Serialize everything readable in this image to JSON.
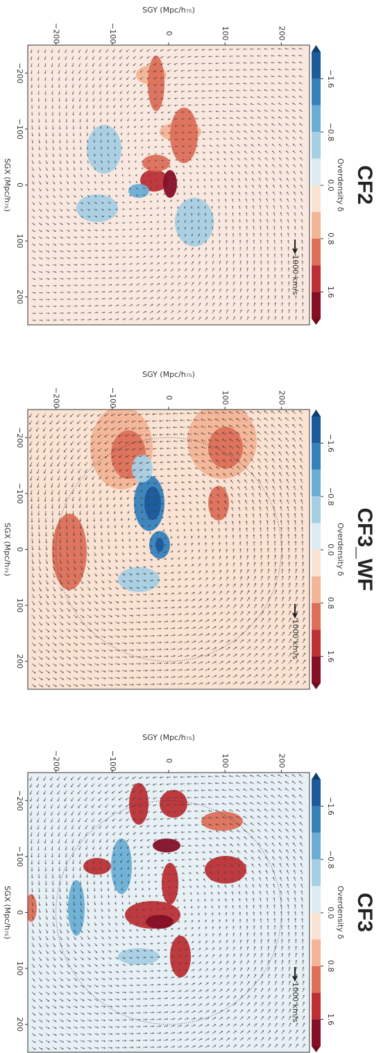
{
  "chart_data": [
    {
      "type": "contour",
      "title": "CF2",
      "xlabel": "SGX (Mpc/h₇₅)",
      "ylabel": "SGY (Mpc/h₇₅)",
      "xlim": [
        -250,
        250
      ],
      "xticks": [
        {
          "value": -200,
          "label": "−200"
        },
        {
          "value": -100,
          "label": "−100"
        },
        0,
        100,
        200
      ],
      "ylim": [
        -250,
        250
      ],
      "yticks": [
        {
          "value": -200,
          "label": "−200"
        },
        {
          "value": -100,
          "label": "−100"
        },
        0,
        100,
        200
      ],
      "colorbar": {
        "label": "Overdensity δ",
        "lim": [
          -2.0,
          2.0
        ],
        "levels": [
          -2.0,
          -1.6,
          -1.2,
          -0.8,
          -0.4,
          0.0,
          0.4,
          0.8,
          1.2,
          1.6,
          2.0
        ],
        "colors": [
          "#1b5a9b",
          "#3581ba",
          "#6aaed5",
          "#a7cfe4",
          "#ddebf2",
          "#fbe3d4",
          "#f4b496",
          "#dd6f58",
          "#bd2f35",
          "#860e25"
        ],
        "extend_colors": [
          "#0f3e73",
          "#6d0c1f"
        ],
        "ticks": [
          {
            "value": -1.6,
            "label": "−1.6"
          },
          {
            "value": -0.8,
            "label": "−0.8"
          },
          {
            "value": 0.0,
            "label": "0.0"
          },
          0.8,
          1.6
        ]
      },
      "quiver_key": "1000 km/s",
      "background": "#f9e8df"
    },
    {
      "type": "contour",
      "title": "CF3_WF",
      "xlabel": "SGX (Mpc/h₇₅)",
      "ylabel": "SGY (Mpc/h₇₅)",
      "xlim": [
        -250,
        250
      ],
      "xticks": [
        {
          "value": -200,
          "label": "−200"
        },
        {
          "value": -100,
          "label": "−100"
        },
        0,
        100,
        200
      ],
      "ylim": [
        -250,
        250
      ],
      "yticks": [
        {
          "value": -200,
          "label": "−200"
        },
        {
          "value": -100,
          "label": "−100"
        },
        0,
        100,
        200
      ],
      "colorbar": {
        "label": "Overdensity δ",
        "lim": [
          -2.0,
          2.0
        ],
        "levels": [
          -2.0,
          -1.6,
          -1.2,
          -0.8,
          -0.4,
          0.0,
          0.4,
          0.8,
          1.2,
          1.6,
          2.0
        ],
        "colors": [
          "#1b5a9b",
          "#3581ba",
          "#6aaed5",
          "#a7cfe4",
          "#ddebf2",
          "#fbe3d4",
          "#f4b496",
          "#dd6f58",
          "#bd2f35",
          "#860e25"
        ],
        "extend_colors": [
          "#0f3e73",
          "#6d0c1f"
        ],
        "ticks": [
          {
            "value": -1.6,
            "label": "−1.6"
          },
          {
            "value": -0.8,
            "label": "−0.8"
          },
          {
            "value": 0.0,
            "label": "0.0"
          },
          0.8,
          1.6
        ]
      },
      "quiver_key": "1000 km/s",
      "circle_radius": 200,
      "background": "#fbe3d4"
    },
    {
      "type": "contour",
      "title": "CF3",
      "xlabel": "SGX (Mpc/h₇₅)",
      "ylabel": "SGY (Mpc/h₇₅)",
      "xlim": [
        -250,
        250
      ],
      "xticks": [
        {
          "value": -200,
          "label": "−200"
        },
        {
          "value": -100,
          "label": "−100"
        },
        0,
        100,
        200
      ],
      "ylim": [
        -250,
        250
      ],
      "yticks": [
        {
          "value": -200,
          "label": "−200"
        },
        {
          "value": -100,
          "label": "−100"
        },
        0,
        100,
        200
      ],
      "colorbar": {
        "label": "Overdensity δ",
        "lim": [
          -2.0,
          2.0
        ],
        "levels": [
          -2.0,
          -1.6,
          -1.2,
          -0.8,
          -0.4,
          0.0,
          0.4,
          0.8,
          1.2,
          1.6,
          2.0
        ],
        "colors": [
          "#1b5a9b",
          "#3581ba",
          "#6aaed5",
          "#a7cfe4",
          "#ddebf2",
          "#fbe3d4",
          "#f4b496",
          "#dd6f58",
          "#bd2f35",
          "#860e25"
        ],
        "extend_colors": [
          "#0f3e73",
          "#6d0c1f"
        ],
        "ticks": [
          {
            "value": -1.6,
            "label": "−1.6"
          },
          {
            "value": -0.8,
            "label": "−0.8"
          },
          {
            "value": 0.0,
            "label": "0.0"
          },
          0.8,
          1.6
        ]
      },
      "quiver_key": "1000 km/s",
      "circle_radius": 200,
      "background": "#e6f0f5"
    }
  ]
}
